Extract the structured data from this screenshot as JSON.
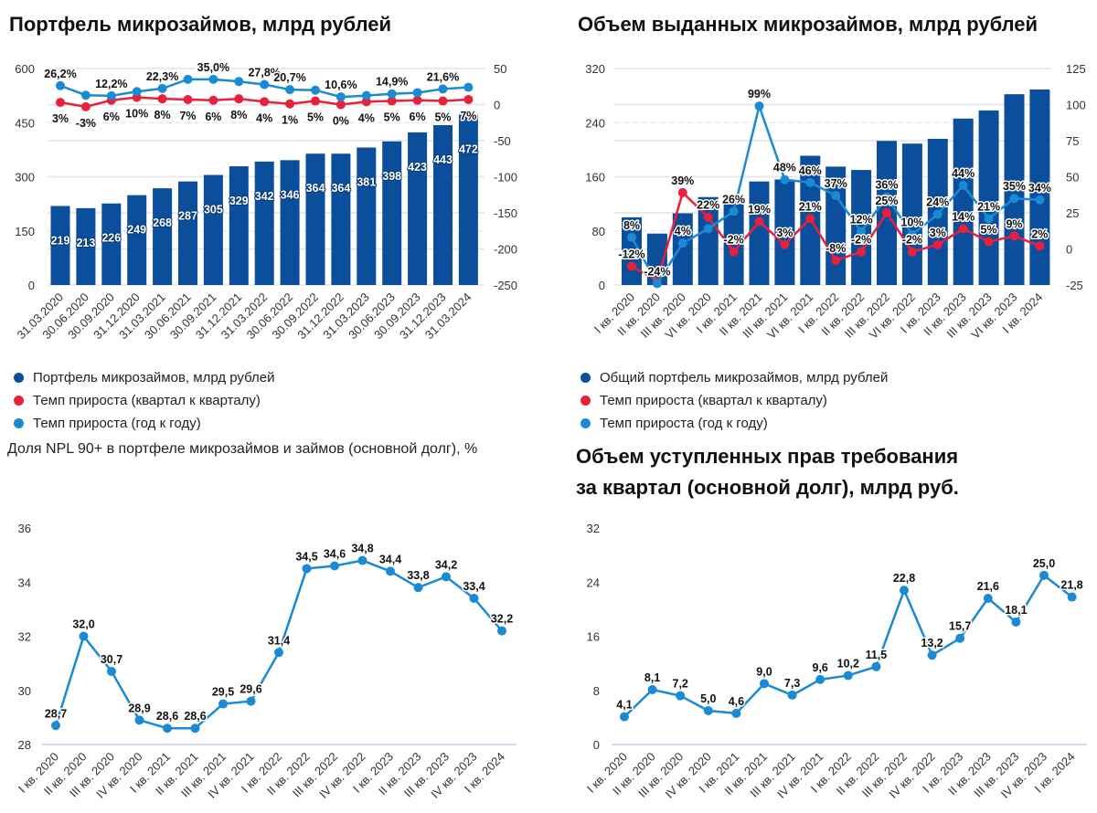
{
  "colors": {
    "bars": "#0b4f9c",
    "qoq_line": "#e8203a",
    "yoy_line": "#1a8ad4",
    "grid": "#dde3ee"
  },
  "chart_data": [
    {
      "id": "portfolio",
      "type": "bar+line",
      "title": "Портфель микрозаймов, млрд рублей",
      "categories": [
        "31.03.2020",
        "30.06.2020",
        "30.09.2020",
        "31.12.2020",
        "31.03.2021",
        "30.06.2021",
        "30.09.2021",
        "31.12.2021",
        "31.03.2022",
        "30.06.2022",
        "30.09.2022",
        "31.12.2022",
        "31.03.2023",
        "30.06.2023",
        "30.09.2023",
        "31.12.2023",
        "31.03.2024"
      ],
      "left_axis": {
        "min": 0,
        "max": 600,
        "ticks": [
          0,
          150,
          300,
          450,
          600
        ]
      },
      "right_axis": {
        "min": -250,
        "max": 50,
        "ticks": [
          -250,
          -200,
          -150,
          -100,
          -50,
          0,
          50
        ]
      },
      "series": [
        {
          "name": "Портфель микрозаймов, млрд рублей",
          "type": "bar",
          "axis": "left",
          "color": "#0b4f9c",
          "values": [
            219,
            213,
            226,
            249,
            268,
            287,
            305,
            329,
            342,
            346,
            364,
            364,
            381,
            398,
            423,
            443,
            472
          ],
          "labels": [
            "219",
            "213",
            "226",
            "249",
            "268",
            "287",
            "305",
            "329",
            "342",
            "346",
            "364",
            "364",
            "381",
            "398",
            "423",
            "443",
            "472"
          ]
        },
        {
          "name": "Темп прироста (квартал к кварталу)",
          "type": "line",
          "axis": "right",
          "color": "#e8203a",
          "label_pos": "below",
          "values": [
            3,
            -3,
            6,
            10,
            8,
            7,
            6,
            8,
            4,
            1,
            5,
            0,
            4,
            5,
            6,
            5,
            7
          ],
          "labels": [
            "3%",
            "-3%",
            "6%",
            "10%",
            "8%",
            "7%",
            "6%",
            "8%",
            "4%",
            "1%",
            "5%",
            "0%",
            "4%",
            "5%",
            "6%",
            "5%",
            "7%"
          ]
        },
        {
          "name": "Темп прироста (год к году)",
          "type": "line",
          "axis": "right",
          "color": "#1a8ad4",
          "label_pos": "above",
          "values": [
            26.2,
            13,
            12.2,
            18,
            22.3,
            35,
            35.0,
            32,
            27.8,
            20.7,
            20,
            10.6,
            12.5,
            14.9,
            16.5,
            21.6,
            24
          ],
          "labels": [
            "26,2%",
            "",
            "12,2%",
            "",
            "22,3%",
            "",
            "35,0%",
            "",
            "27,8%",
            "20,7%",
            "",
            "10,6%",
            "",
            "14,9%",
            "",
            "21,6%",
            ""
          ]
        }
      ],
      "grid": true,
      "legend": "bottom-left"
    },
    {
      "id": "issued",
      "type": "bar+line",
      "title": "Объем выданных микрозаймов, млрд рублей",
      "categories": [
        "I кв. 2020",
        "II кв. 2020",
        "III кв. 2020",
        "VI кв. 2020",
        "I кв. 2021",
        "II кв. 2021",
        "III кв. 2021",
        "VI кв. 2021",
        "I кв. 2022",
        "II кв. 2022",
        "III кв. 2022",
        "VI кв. 2022",
        "I кв. 2023",
        "II кв. 2023",
        "III кв. 2023",
        "VI кв. 2023",
        "I кв. 2024"
      ],
      "left_axis": {
        "min": 0,
        "max": 320,
        "ticks": [
          0,
          80,
          160,
          240,
          320
        ]
      },
      "right_axis": {
        "min": -25,
        "max": 125,
        "ticks": [
          -25,
          0,
          25,
          50,
          75,
          100,
          125
        ]
      },
      "series": [
        {
          "name": "Общий портфель микрозаймов, млрд рублей",
          "type": "bar",
          "axis": "left",
          "color": "#0b4f9c",
          "values": [
            100,
            76,
            106,
            130,
            120,
            153,
            156,
            191,
            175,
            170,
            213,
            209,
            216,
            246,
            258,
            282,
            289
          ],
          "labels": []
        },
        {
          "name": "Темп прироста (квартал к кварталу)",
          "type": "line",
          "axis": "right",
          "color": "#e8203a",
          "label_pos": "above",
          "values": [
            -12,
            -22,
            39,
            22,
            -2,
            19,
            3,
            21,
            -8,
            -2,
            25,
            -2,
            3,
            14,
            5,
            9,
            2
          ],
          "labels": [
            "-12%",
            "",
            "39%",
            "22%",
            "-2%",
            "19%",
            "3%",
            "21%",
            "-8%",
            "-2%",
            "25%",
            "-2%",
            "3%",
            "14%",
            "5%",
            "9%",
            "2%"
          ]
        },
        {
          "name": "Темп прироста (год к году)",
          "type": "line",
          "axis": "right",
          "color": "#1a8ad4",
          "label_pos": "above",
          "values": [
            8,
            -24,
            4,
            14,
            26,
            99,
            48,
            46,
            37,
            12,
            36,
            10,
            24,
            44,
            21,
            35,
            34
          ],
          "labels": [
            "8%",
            "-24%",
            "4%",
            "",
            "26%",
            "99%",
            "48%",
            "46%",
            "37%",
            "12%",
            "36%",
            "10%",
            "24%",
            "44%",
            "21%",
            "35%",
            "34%"
          ]
        }
      ],
      "grid": true,
      "legend": "bottom-left"
    },
    {
      "id": "npl",
      "type": "line",
      "title": "Доля NPL 90+ в портфеле микрозаймов и займов (основной долг), %",
      "categories": [
        "I кв. 2020",
        "II кв. 2020",
        "III кв. 2020",
        "IV кв. 2020",
        "I кв. 2021",
        "II кв. 2021",
        "III кв. 2021",
        "IV кв. 2021",
        "I кв. 2022",
        "II кв. 2022",
        "III кв. 2022",
        "IV кв. 2022",
        "I кв. 2023",
        "II кв. 2023",
        "III кв. 2023",
        "IV кв. 2023",
        "I кв. 2024"
      ],
      "left_axis": {
        "min": 28,
        "max": 36,
        "ticks": [
          28,
          30,
          32,
          34,
          36
        ]
      },
      "series": [
        {
          "type": "line",
          "color": "#1a8ad4",
          "label_pos": "above",
          "values": [
            28.7,
            32.0,
            30.7,
            28.9,
            28.6,
            28.6,
            29.5,
            29.6,
            31.4,
            34.5,
            34.6,
            34.8,
            34.4,
            33.8,
            34.2,
            33.4,
            32.2
          ],
          "labels": [
            "28,7",
            "32,0",
            "30,7",
            "28,9",
            "28,6",
            "28,6",
            "29,5",
            "29,6",
            "31,4",
            "34,5",
            "34,6",
            "34,8",
            "34,4",
            "33,8",
            "34,2",
            "33,4",
            "32,2"
          ]
        }
      ],
      "grid": "baseline-only",
      "legend": "none"
    },
    {
      "id": "assigned",
      "type": "line",
      "title": "Объем уступленных прав требования за квартал (основной долг), млрд руб.",
      "title_lines": [
        "Объем уступленных прав требования",
        "за квартал (основной долг), млрд руб."
      ],
      "categories": [
        "I кв. 2020",
        "II кв. 2020",
        "III кв. 2020",
        "IV кв. 2020",
        "I кв. 2021",
        "II кв. 2021",
        "III кв. 2021",
        "IV кв. 2021",
        "I кв. 2022",
        "II кв. 2022",
        "III кв. 2022",
        "IV кв. 2022",
        "I кв. 2023",
        "II кв. 2023",
        "III кв. 2023",
        "IV кв. 2023",
        "I кв. 2024"
      ],
      "left_axis": {
        "min": 0,
        "max": 32,
        "ticks": [
          0,
          8,
          16,
          24,
          32
        ]
      },
      "series": [
        {
          "type": "line",
          "color": "#1a8ad4",
          "label_pos": "above",
          "values": [
            4.1,
            8.1,
            7.2,
            5.0,
            4.6,
            9.0,
            7.3,
            9.6,
            10.2,
            11.5,
            22.8,
            13.2,
            15.7,
            21.6,
            18.1,
            25.0,
            21.8
          ],
          "labels": [
            "4,1",
            "8,1",
            "7,2",
            "5,0",
            "4,6",
            "9,0",
            "7,3",
            "9,6",
            "10,2",
            "11,5",
            "22,8",
            "13,2",
            "15,7",
            "21,6",
            "18,1",
            "25,0",
            "21,8"
          ]
        }
      ],
      "grid": "baseline-only",
      "legend": "none"
    }
  ]
}
